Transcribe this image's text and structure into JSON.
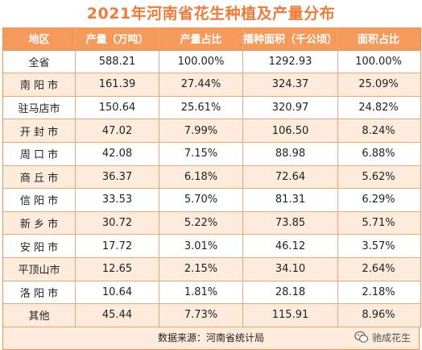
{
  "title": "2021年河南省花生种植及产量分布",
  "columns": [
    "地区",
    "产量（万吨）",
    "产量占比",
    "播种面积（千公顷）",
    "面积占比"
  ],
  "rows": [
    [
      "全省",
      "588.21",
      "100.00%",
      "1292.93",
      "100.00%"
    ],
    [
      "南 阳 市",
      "161.39",
      "27.44%",
      "324.37",
      "25.09%"
    ],
    [
      "驻马店市",
      "150.64",
      "25.61%",
      "320.97",
      "24.82%"
    ],
    [
      "开 封 市",
      "47.02",
      "7.99%",
      "106.50",
      "8.24%"
    ],
    [
      "周 口 市",
      "42.08",
      "7.15%",
      "88.98",
      "6.88%"
    ],
    [
      "商 丘 市",
      "36.37",
      "6.18%",
      "72.64",
      "5.62%"
    ],
    [
      "信 阳 市",
      "33.53",
      "5.70%",
      "81.31",
      "6.29%"
    ],
    [
      "新 乡 市",
      "30.72",
      "5.22%",
      "73.85",
      "5.71%"
    ],
    [
      "安 阳 市",
      "17.72",
      "3.01%",
      "46.12",
      "3.57%"
    ],
    [
      "平顶山市",
      "12.65",
      "2.15%",
      "34.10",
      "2.64%"
    ],
    [
      "洛 阳 市",
      "10.64",
      "1.81%",
      "28.18",
      "2.18%"
    ],
    [
      "其他",
      "45.44",
      "7.73%",
      "115.91",
      "8.96%"
    ]
  ],
  "source": "数据来源：河南省统计局",
  "watermark": "驰成花生",
  "colors": {
    "accent": "#ef7b38",
    "header_bg": "#f59a5a",
    "alt_row_bg": "#fdebdc"
  },
  "icons": {
    "watermark": "wechat-icon"
  }
}
